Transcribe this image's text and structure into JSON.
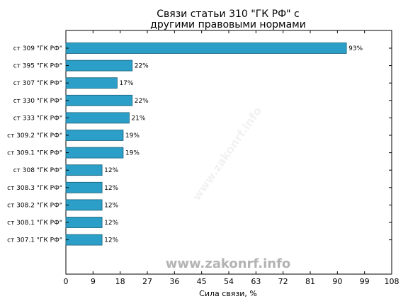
{
  "chart_data": {
    "type": "bar",
    "orientation": "horizontal",
    "title_lines": [
      "Связи статьи 310 \"ГК РФ\" с",
      "другими правовыми нормами"
    ],
    "xlabel": "Сила связи, %",
    "ylabel": "",
    "categories": [
      "ст 309 \"ГК РФ\"",
      "ст 395 \"ГК РФ\"",
      "ст 307 \"ГК РФ\"",
      "ст 330 \"ГК РФ\"",
      "ст 333 \"ГК РФ\"",
      "ст 309.2 \"ГК РФ\"",
      "ст 309.1 \"ГК РФ\"",
      "ст 308 \"ГК РФ\"",
      "ст 308.3 \"ГК РФ\"",
      "ст 308.2 \"ГК РФ\"",
      "ст 308.1 \"ГК РФ\"",
      "ст 307.1 \"ГК РФ\""
    ],
    "values": [
      93,
      22,
      17,
      22,
      21,
      19,
      19,
      12,
      12,
      12,
      12,
      12
    ],
    "value_labels": [
      "93%",
      "22%",
      "17%",
      "22%",
      "21%",
      "19%",
      "19%",
      "12%",
      "12%",
      "12%",
      "12%",
      "12%"
    ],
    "xlim": [
      0,
      108
    ],
    "xticks": [
      0,
      9,
      18,
      27,
      36,
      45,
      54,
      63,
      72,
      81,
      90,
      99,
      108
    ],
    "grid": false,
    "colors": {
      "bar": "#2b9fc7",
      "bar_edge": "#1a5f78"
    }
  },
  "watermark": "www.zakonrf.info",
  "watermark_diagonal": "www.zakonrf.info"
}
